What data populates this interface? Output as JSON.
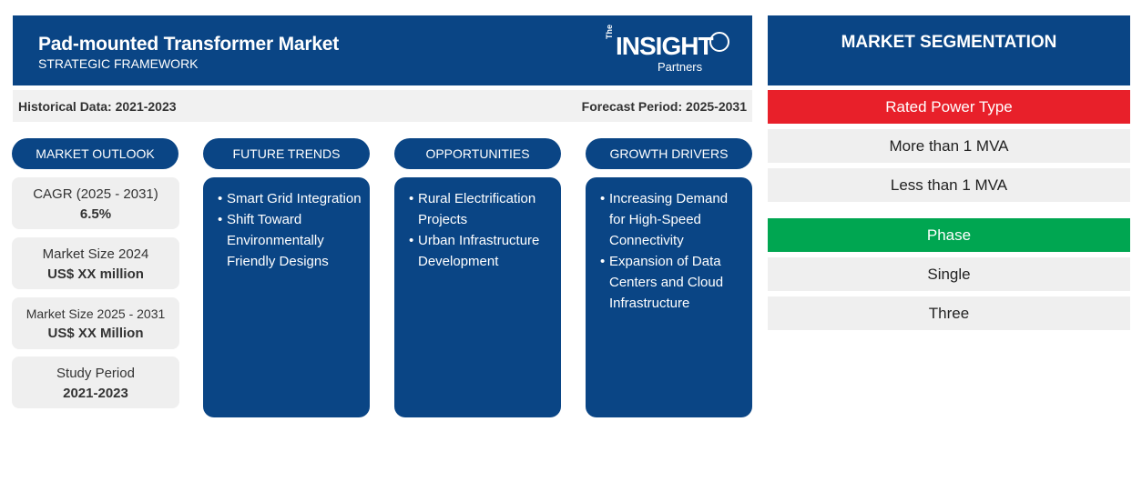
{
  "header": {
    "title": "Pad-mounted Transformer Market",
    "subtitle": "STRATEGIC FRAMEWORK",
    "logo": {
      "the": "The",
      "insight": "INSIGHT",
      "partners": "Partners"
    }
  },
  "periods": {
    "historical": "Historical Data: 2021-2023",
    "forecast": "Forecast Period: 2025-2031"
  },
  "columns": {
    "outlook": "MARKET OUTLOOK",
    "trends": "FUTURE TRENDS",
    "opportunities": "OPPORTUNITIES",
    "drivers": "GROWTH DRIVERS"
  },
  "outlook": [
    {
      "label": "CAGR (2025 - 2031)",
      "value": "6.5%"
    },
    {
      "label": "Market Size 2024",
      "value": "US$ XX million"
    },
    {
      "label": "Market Size 2025 - 2031",
      "value": "US$ XX Million"
    },
    {
      "label": "Study Period",
      "value": "2021-2023"
    }
  ],
  "trends": [
    "Smart Grid Integration",
    "Shift Toward Environmentally Friendly Designs"
  ],
  "opportunities": [
    "Rural Electrification Projects",
    "Urban Infrastructure Development"
  ],
  "drivers": [
    "Increasing Demand for High-Speed Connectivity",
    "Expansion of Data Centers and Cloud Infrastructure"
  ],
  "segmentation": {
    "title": "MARKET SEGMENTATION",
    "categories": [
      {
        "name": "Rated Power Type",
        "color": "#e8202a",
        "items": [
          "More than 1 MVA",
          "Less than 1 MVA"
        ]
      },
      {
        "name": "Phase",
        "color": "#00a651",
        "items": [
          "Single",
          "Three"
        ]
      }
    ]
  },
  "colors": {
    "navy": "#0a4585",
    "card": "#efefef"
  }
}
